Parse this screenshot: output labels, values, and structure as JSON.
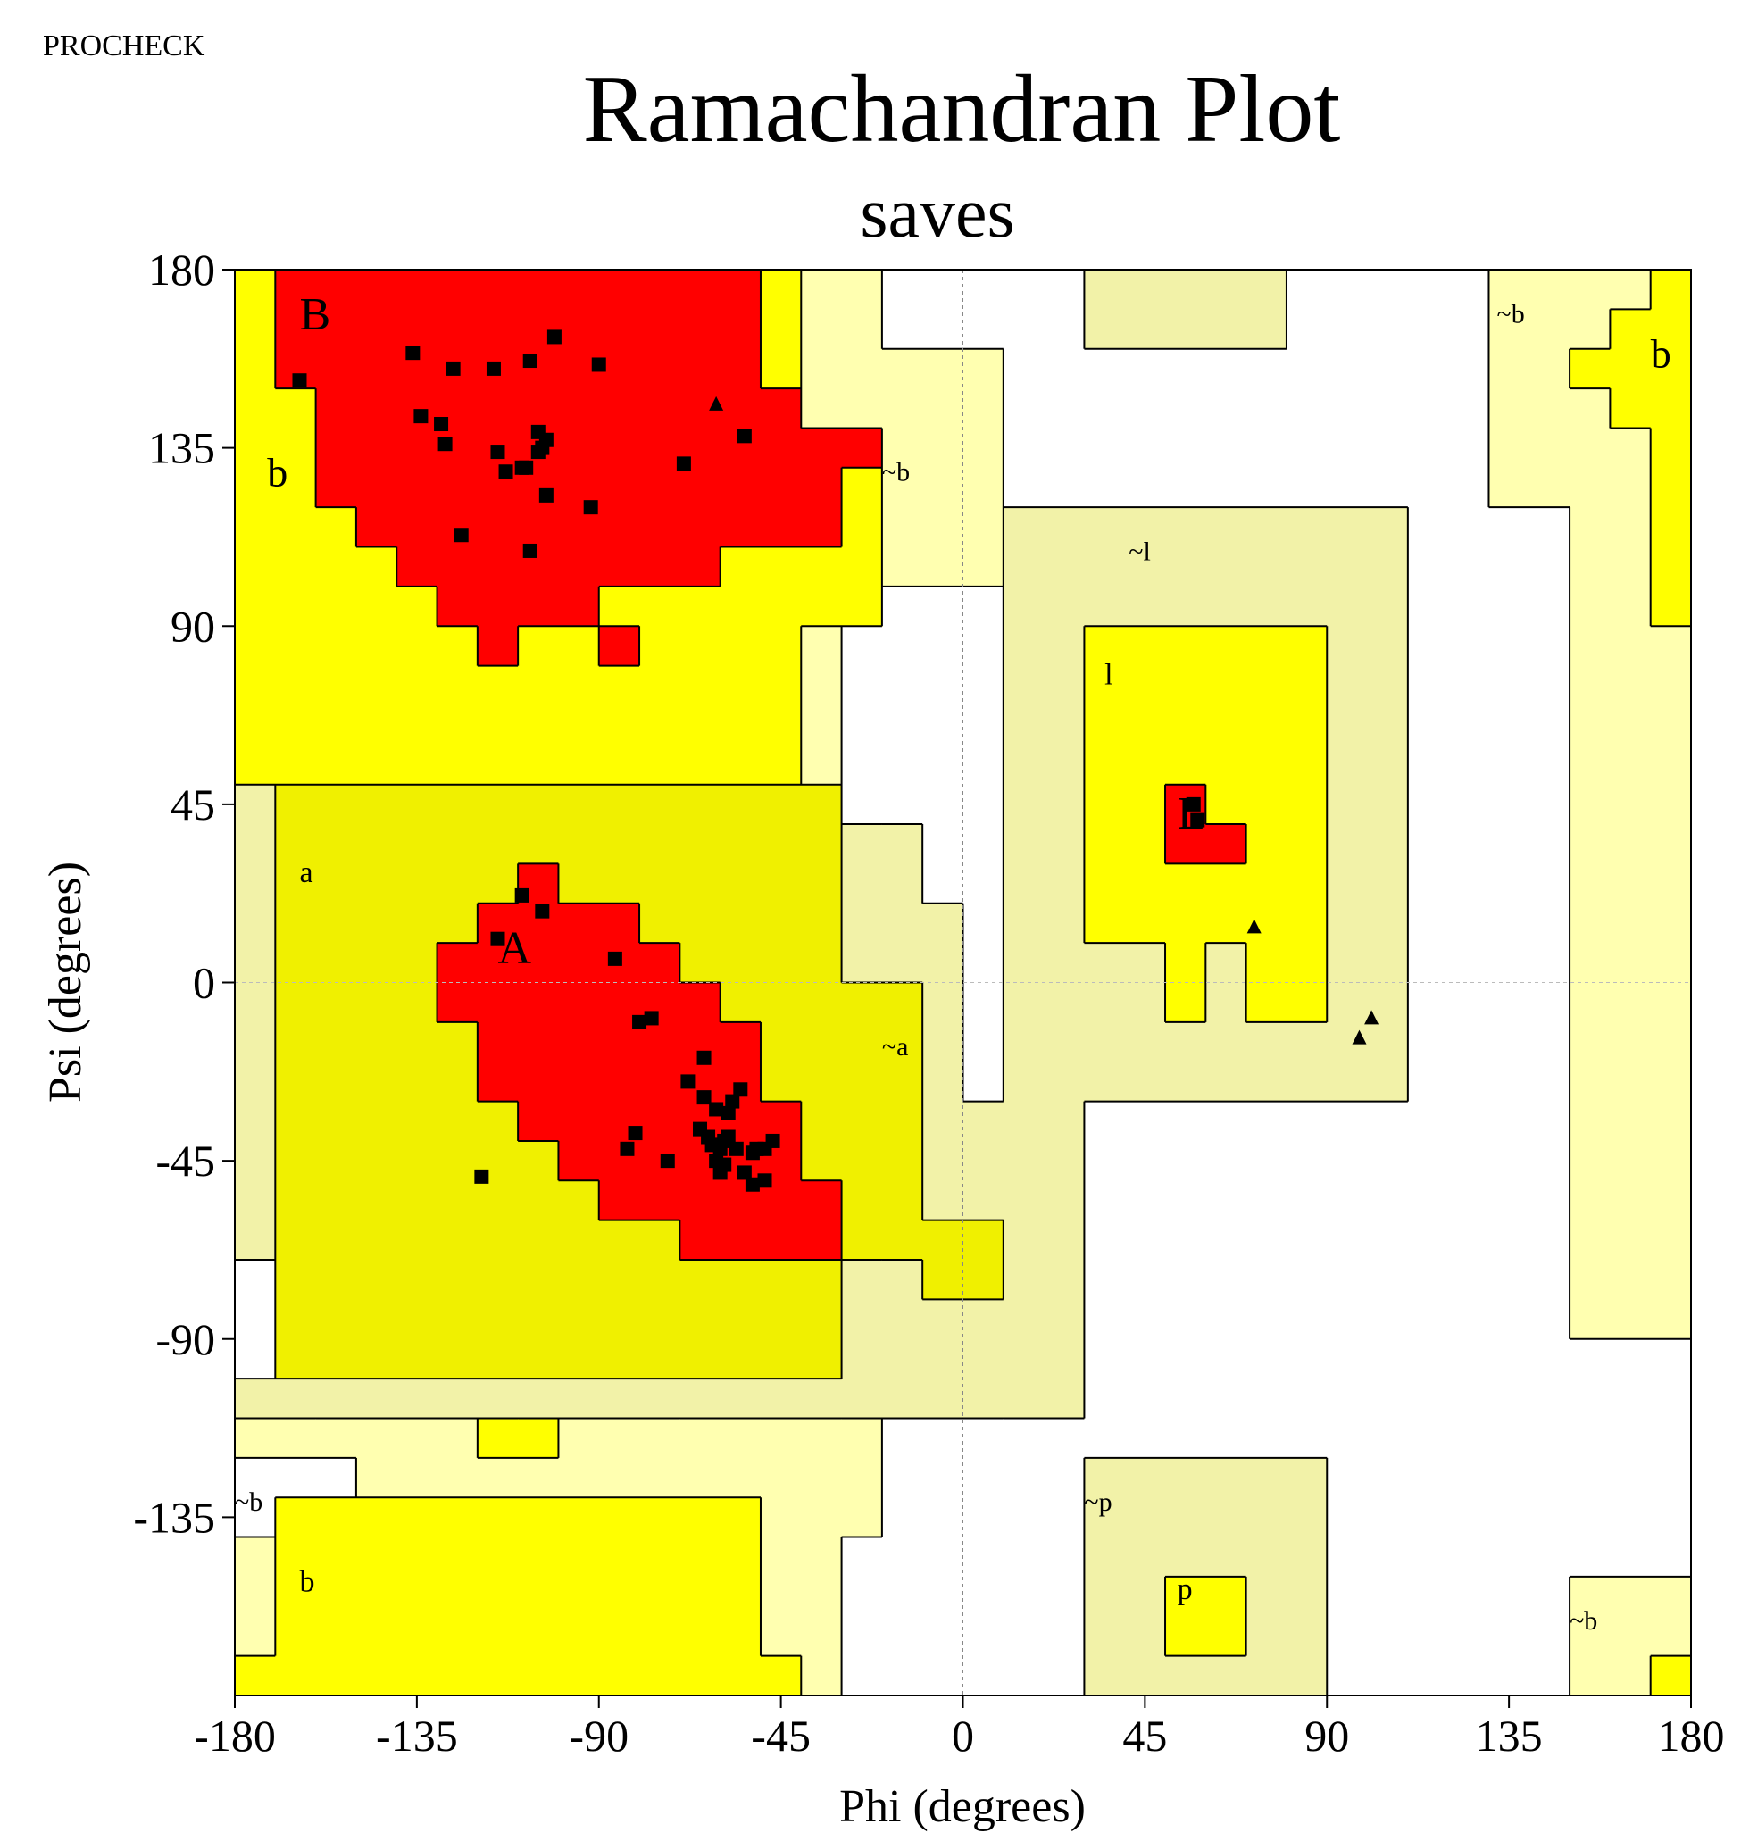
{
  "header": {
    "program": "PROCHECK"
  },
  "chart_data": {
    "type": "scatter",
    "title": "Ramachandran Plot",
    "subtitle": "saves",
    "xlabel": "Phi (degrees)",
    "ylabel": "Psi (degrees)",
    "xlim": [
      -180,
      180
    ],
    "ylim": [
      -180,
      180
    ],
    "xticks": [
      -180,
      -135,
      -90,
      -45,
      0,
      45,
      90,
      135,
      180
    ],
    "yticks": [
      180,
      135,
      90,
      45,
      0,
      -45,
      -90,
      -135
    ],
    "xtick_labels": [
      "-180",
      "-135",
      "-90",
      "-45",
      "0",
      "45",
      "90",
      "135",
      "180"
    ],
    "ytick_labels": [
      "180",
      "135",
      "90",
      "45",
      "0",
      "-45",
      "-90",
      "-135"
    ],
    "grid": false,
    "colors": {
      "most_favoured": "#ff0000",
      "additional_allowed": "#ffff00",
      "alpha_allowed": "#f0f000",
      "generously_allowed": "#f2f2a8",
      "generously_allowed_light": "#ffffb0",
      "disallowed": "#ffffff"
    },
    "region_labels": [
      {
        "text": "B",
        "x": -164,
        "y": 169
      },
      {
        "text": "b",
        "x": -172,
        "y": 129
      },
      {
        "text": "A",
        "x": -115,
        "y": 9
      },
      {
        "text": "a",
        "x": -164,
        "y": 28
      },
      {
        "text": "L",
        "x": 53,
        "y": 43
      },
      {
        "text": "l",
        "x": 35,
        "y": 78
      },
      {
        "text": "~b",
        "x": -20,
        "y": 129
      },
      {
        "text": "~l",
        "x": 41,
        "y": 109
      },
      {
        "text": "~a",
        "x": -20,
        "y": -16
      },
      {
        "text": "~b",
        "x": 132,
        "y": 169
      },
      {
        "text": "b",
        "x": 170,
        "y": 159
      },
      {
        "text": "~b",
        "x": -180,
        "y": -131
      },
      {
        "text": "b",
        "x": -164,
        "y": -151
      },
      {
        "text": "~p",
        "x": 30,
        "y": -131
      },
      {
        "text": "p",
        "x": 53,
        "y": -153
      },
      {
        "text": "~b",
        "x": 150,
        "y": -161
      }
    ],
    "series": [
      {
        "marker": "square",
        "points": [
          [
            -164,
            152
          ],
          [
            -136,
            159
          ],
          [
            -126,
            155
          ],
          [
            -116,
            155
          ],
          [
            -107,
            157
          ],
          [
            -101,
            163
          ],
          [
            -90,
            156
          ],
          [
            -134,
            143
          ],
          [
            -129,
            141
          ],
          [
            -128,
            136
          ],
          [
            -115,
            134
          ],
          [
            -113,
            129
          ],
          [
            -109,
            130
          ],
          [
            -108,
            130
          ],
          [
            -105,
            139
          ],
          [
            -105,
            134
          ],
          [
            -103,
            137
          ],
          [
            -104,
            135
          ],
          [
            -103,
            123
          ],
          [
            -92,
            120
          ],
          [
            -69,
            131
          ],
          [
            -124,
            113
          ],
          [
            -107,
            109
          ],
          [
            -54,
            138
          ],
          [
            -109,
            22
          ],
          [
            -104,
            18
          ],
          [
            -115,
            11
          ],
          [
            -86,
            6
          ],
          [
            -80,
            -10
          ],
          [
            -77,
            -9
          ],
          [
            -64,
            -19
          ],
          [
            -68,
            -25
          ],
          [
            -64,
            -29
          ],
          [
            -61,
            -32
          ],
          [
            -57,
            -30
          ],
          [
            -55,
            -27
          ],
          [
            -58,
            -33
          ],
          [
            -65,
            -37
          ],
          [
            -63,
            -39
          ],
          [
            -62,
            -41
          ],
          [
            -59,
            -40
          ],
          [
            -58,
            -39
          ],
          [
            -60,
            -42
          ],
          [
            -61,
            -45
          ],
          [
            -56,
            -42
          ],
          [
            -51,
            -42
          ],
          [
            -59,
            -46
          ],
          [
            -47,
            -40
          ],
          [
            -52,
            -43
          ],
          [
            -49,
            -42
          ],
          [
            -54,
            -48
          ],
          [
            -60,
            -48
          ],
          [
            -81,
            -38
          ],
          [
            -83,
            -42
          ],
          [
            -73,
            -45
          ],
          [
            -52,
            -51
          ],
          [
            -49,
            -50
          ],
          [
            -119,
            -49
          ],
          [
            57,
            45
          ],
          [
            58,
            41
          ]
        ]
      },
      {
        "marker": "triangle",
        "points": [
          [
            -61,
            146
          ],
          [
            72,
            14
          ],
          [
            101,
            -9
          ],
          [
            98,
            -14
          ]
        ]
      }
    ]
  }
}
